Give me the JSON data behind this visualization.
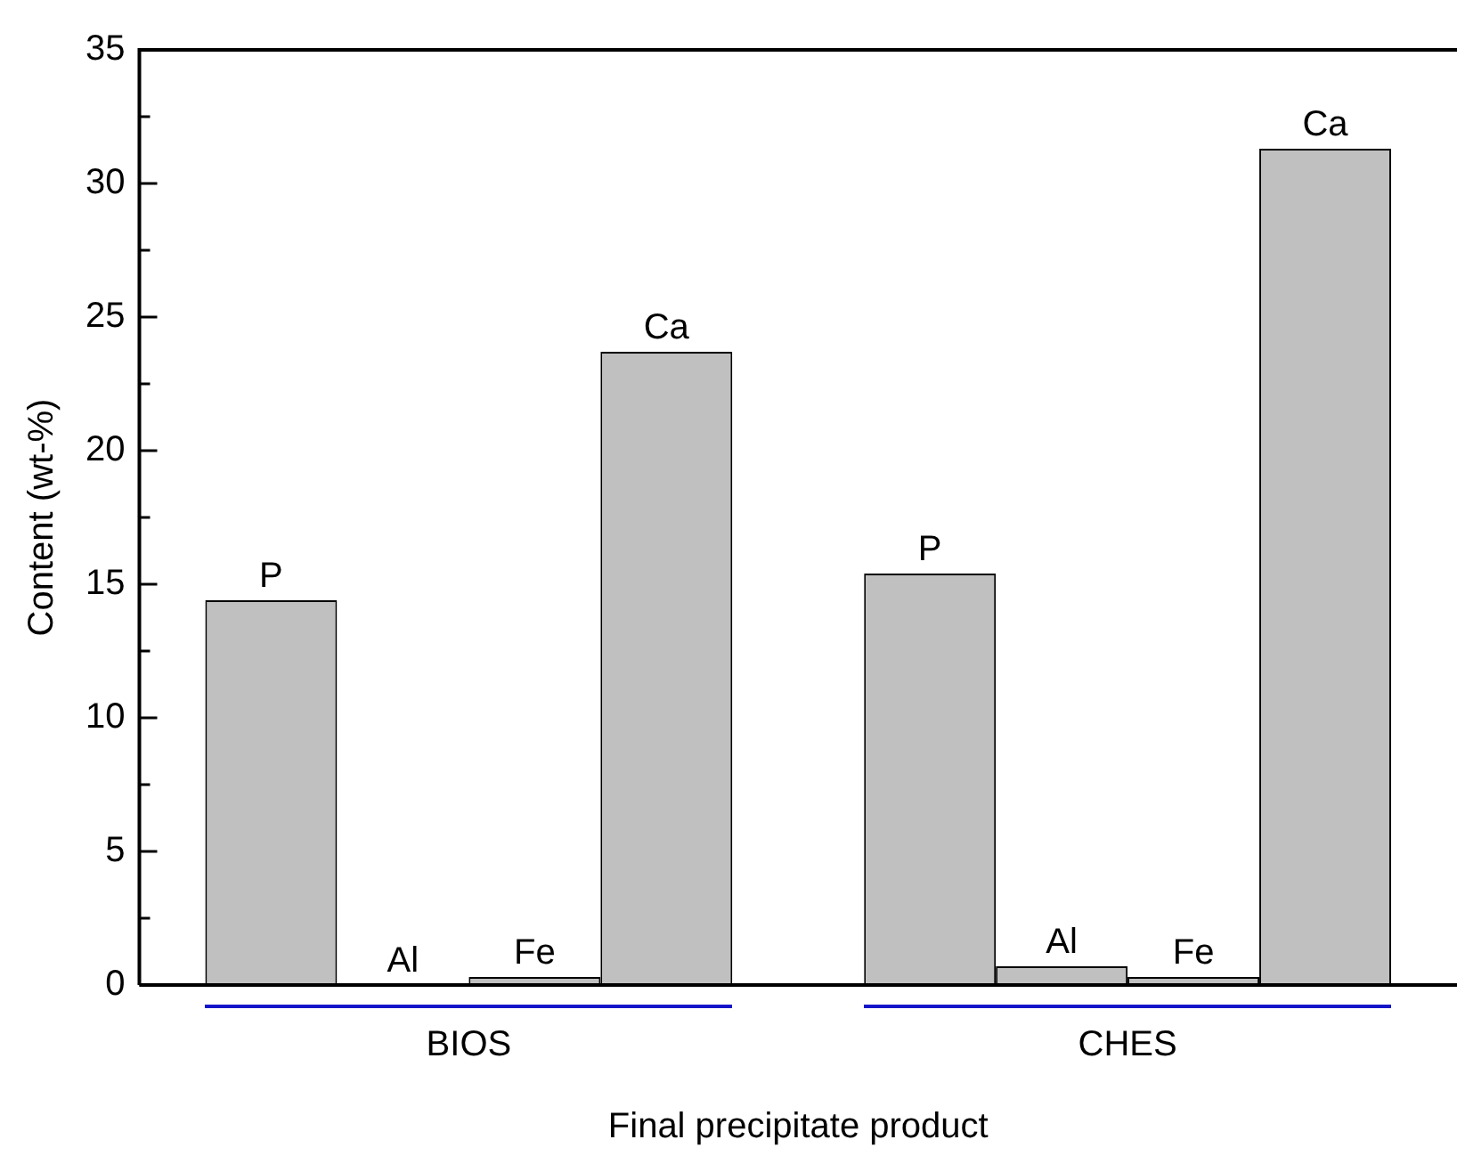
{
  "chart_data": {
    "type": "bar",
    "xlabel": "Final precipitate product",
    "ylabel": "Content (wt-%)",
    "categories": [
      "BIOS",
      "CHES"
    ],
    "series": [
      {
        "name": "P",
        "color": "#c0c0c0",
        "values": [
          14.4,
          15.4
        ]
      },
      {
        "name": "Al",
        "color": "#c0c0c0",
        "values": [
          null,
          0.7
        ]
      },
      {
        "name": "Fe",
        "color": "#c0c0c0",
        "values": [
          0.3,
          0.3
        ]
      },
      {
        "name": "Ca",
        "color": "#c0c0c0",
        "values": [
          23.7,
          31.3
        ]
      }
    ],
    "ylim": [
      0,
      35
    ],
    "yticks": [
      0,
      {
        "value": 2.5,
        "label": null
      },
      5,
      {
        "value": 7.5,
        "label": null
      },
      10,
      {
        "value": 12.5,
        "label": null
      },
      15,
      {
        "value": 17.5,
        "label": null
      },
      20,
      {
        "value": 22.5,
        "label": null
      },
      25,
      {
        "value": 27.5,
        "label": null
      },
      30,
      {
        "value": 32.5,
        "label": null
      },
      35
    ],
    "grid": false,
    "legend": false
  }
}
